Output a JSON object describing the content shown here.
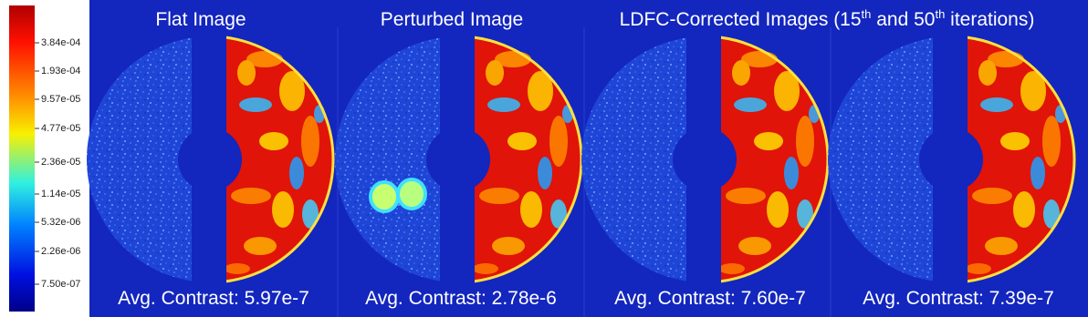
{
  "colorbar": {
    "tick_labels": [
      "3.84e-04",
      "1.93e-04",
      "9.57e-05",
      "4.77e-05",
      "2.36e-05",
      "1.14e-05",
      "5.32e-06",
      "2.26e-06",
      "7.50e-07"
    ]
  },
  "titles": {
    "flat": "Flat Image",
    "perturbed": "Perturbed Image",
    "corrected": [
      "LDFC-Corrected Images (15",
      "th",
      " and 50",
      "th",
      " iterations)"
    ]
  },
  "panels": [
    {
      "caption": "Avg. Contrast: 5.97e-7"
    },
    {
      "caption": "Avg. Contrast: 2.78e-6"
    },
    {
      "caption": "Avg. Contrast: 7.60e-7"
    },
    {
      "caption": "Avg. Contrast: 7.39e-7"
    }
  ]
}
